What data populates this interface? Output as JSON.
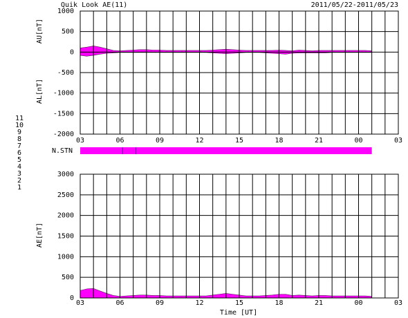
{
  "title": "Quik Look AE(11)",
  "date_range": "2011/05/22-2011/05/23",
  "station_legend": {
    "labels": [
      "11",
      "10",
      "9",
      "8",
      "7",
      "6",
      "5",
      "4",
      "3",
      "2",
      "1"
    ],
    "colors": [
      "#00e0e0",
      "#ff00ff",
      "#0000e0",
      "#e8e800",
      "#b0e060",
      "#ff0000",
      "#c8c8c8",
      "#909090",
      "#00a0a0",
      "#a000a0",
      "#0000a0"
    ]
  },
  "chart_data": [
    {
      "type": "area",
      "y_labels": [
        "AU[nT]",
        "AL[nT]"
      ],
      "xlim": [
        3,
        27
      ],
      "ylim": [
        -2000,
        1000
      ],
      "xticks": [
        {
          "value": 3,
          "label": "03"
        },
        {
          "value": 6,
          "label": "06"
        },
        {
          "value": 9,
          "label": "09"
        },
        12,
        15,
        18,
        21,
        {
          "value": 24,
          "label": "00"
        },
        {
          "value": 27,
          "label": "03"
        }
      ],
      "xgrid": [
        3,
        4,
        5,
        6,
        7,
        8,
        9,
        10,
        11,
        12,
        13,
        14,
        15,
        16,
        17,
        18,
        19,
        20,
        21,
        22,
        23,
        24,
        25,
        26,
        27
      ],
      "yticks": [
        1000,
        500,
        0,
        -500,
        -1000,
        -1500,
        -2000
      ],
      "x": [
        3,
        3.5,
        4,
        4.5,
        5,
        5.5,
        6,
        6.5,
        7,
        7.5,
        8,
        8.5,
        9,
        9.5,
        10,
        10.5,
        11,
        11.5,
        12,
        12.5,
        13,
        13.5,
        14,
        14.5,
        15,
        15.5,
        16,
        16.5,
        17,
        17.5,
        18,
        18.5,
        19,
        19.5,
        20,
        20.5,
        21,
        21.5,
        22,
        22.5,
        23,
        23.5,
        24,
        24.5,
        25
      ],
      "series": [
        {
          "color": "#ff00ff",
          "values": [
            100,
            120,
            150,
            120,
            80,
            40,
            30,
            40,
            50,
            60,
            60,
            50,
            50,
            40,
            40,
            40,
            40,
            40,
            40,
            40,
            50,
            60,
            70,
            60,
            50,
            40,
            40,
            40,
            40,
            40,
            50,
            40,
            30,
            50,
            40,
            30,
            40,
            40,
            40,
            40,
            40,
            40,
            40,
            40,
            30
          ]
        },
        {
          "color": "#ff00ff",
          "values": [
            -80,
            -100,
            -80,
            -50,
            -30,
            -20,
            -10,
            -10,
            -10,
            -10,
            -10,
            -10,
            -10,
            -10,
            -10,
            -10,
            -10,
            -10,
            -10,
            -10,
            -20,
            -30,
            -40,
            -30,
            -20,
            -10,
            -10,
            -10,
            -20,
            -30,
            -40,
            -50,
            -30,
            -20,
            -20,
            -20,
            -20,
            -20,
            -10,
            -10,
            -10,
            -10,
            -10,
            -10,
            -10
          ]
        }
      ]
    },
    {
      "type": "band",
      "label": "N.STN",
      "xlim": [
        3,
        27
      ],
      "spans": [
        {
          "x": [
            3,
            25
          ],
          "color": "#ff00ff"
        }
      ],
      "breaks": [
        6.2,
        7.2
      ]
    },
    {
      "type": "area",
      "y_labels": [
        "AE[nT]"
      ],
      "x_label": "Time [UT]",
      "xlim": [
        3,
        27
      ],
      "ylim": [
        0,
        3000
      ],
      "xticks": [
        {
          "value": 3,
          "label": "03"
        },
        {
          "value": 6,
          "label": "06"
        },
        {
          "value": 9,
          "label": "09"
        },
        12,
        15,
        18,
        21,
        {
          "value": 24,
          "label": "00"
        },
        {
          "value": 27,
          "label": "03"
        }
      ],
      "xgrid": [
        3,
        4,
        5,
        6,
        7,
        8,
        9,
        10,
        11,
        12,
        13,
        14,
        15,
        16,
        17,
        18,
        19,
        20,
        21,
        22,
        23,
        24,
        25,
        26,
        27
      ],
      "yticks": [
        3000,
        2500,
        2000,
        1500,
        1000,
        500,
        0
      ],
      "x": [
        3,
        3.5,
        4,
        4.5,
        5,
        5.5,
        6,
        6.5,
        7,
        7.5,
        8,
        8.5,
        9,
        9.5,
        10,
        10.5,
        11,
        11.5,
        12,
        12.5,
        13,
        13.5,
        14,
        14.5,
        15,
        15.5,
        16,
        16.5,
        17,
        17.5,
        18,
        18.5,
        19,
        19.5,
        20,
        20.5,
        21,
        21.5,
        22,
        22.5,
        23,
        23.5,
        24,
        24.5,
        25
      ],
      "series": [
        {
          "color": "#ff00ff",
          "values": [
            180,
            220,
            230,
            170,
            110,
            60,
            40,
            50,
            60,
            70,
            70,
            60,
            60,
            50,
            50,
            50,
            50,
            50,
            50,
            50,
            70,
            90,
            110,
            90,
            70,
            50,
            50,
            50,
            60,
            70,
            90,
            90,
            60,
            70,
            60,
            50,
            60,
            60,
            50,
            50,
            50,
            50,
            50,
            50,
            40
          ]
        }
      ]
    }
  ]
}
